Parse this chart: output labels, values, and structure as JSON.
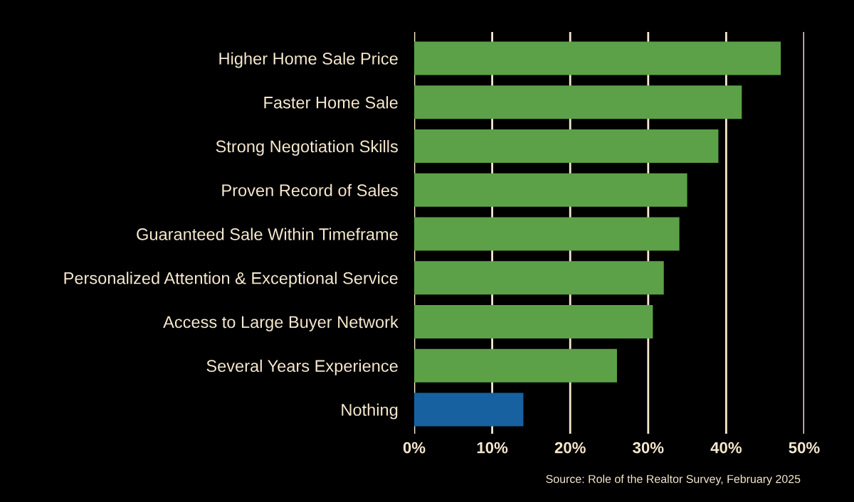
{
  "chart_data": {
    "type": "bar",
    "orientation": "horizontal",
    "categories": [
      "Higher Home Sale Price",
      "Faster Home Sale",
      "Strong Negotiation Skills",
      "Proven Record of Sales",
      "Guaranteed Sale Within Timeframe",
      "Personalized Attention & Exceptional Service",
      "Access to Large Buyer Network",
      "Several Years Experience",
      "Nothing"
    ],
    "values": [
      47,
      42,
      39,
      35,
      34,
      32,
      30.6,
      26,
      14
    ],
    "colors": [
      "#5ca147",
      "#5ca147",
      "#5ca147",
      "#5ca147",
      "#5ca147",
      "#5ca147",
      "#5ca147",
      "#5ca147",
      "#1761a0"
    ],
    "xlim": [
      0,
      50
    ],
    "xticks": [
      {
        "value": 0,
        "label": "0%"
      },
      {
        "value": 10,
        "label": "10%"
      },
      {
        "value": 20,
        "label": "20%"
      },
      {
        "value": 30,
        "label": "30%"
      },
      {
        "value": 40,
        "label": "40%"
      },
      {
        "value": 50,
        "label": "50%"
      }
    ],
    "grid": "x",
    "legend": false,
    "annotations": [
      "Source: Role of the Realtor Survey, February 2025"
    ]
  }
}
